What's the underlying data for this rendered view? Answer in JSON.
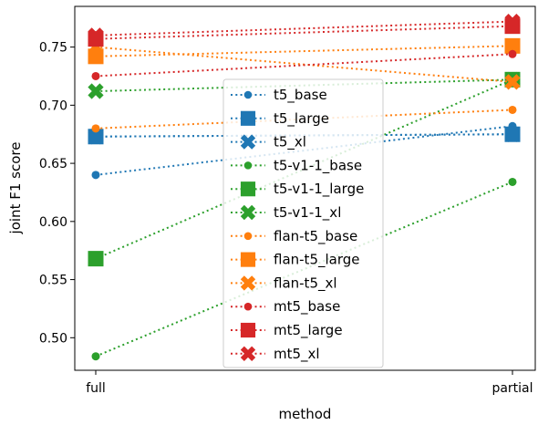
{
  "chart_data": {
    "type": "line",
    "title": "",
    "xlabel": "method",
    "ylabel": "joint F1 score",
    "categories": [
      "full",
      "partial"
    ],
    "ylim": [
      0.472,
      0.785
    ],
    "yticks": [
      "0.50",
      "0.55",
      "0.60",
      "0.65",
      "0.70",
      "0.75"
    ],
    "grid": false,
    "legend_position": "center",
    "colors": {
      "blue": "#1f77b4",
      "orange": "#ff7f0e",
      "green": "#2ca02c",
      "red": "#d62728"
    },
    "series": [
      {
        "name": "t5_base",
        "color": "#1f77b4",
        "marker": "circle",
        "values": [
          0.64,
          0.682
        ]
      },
      {
        "name": "t5_large",
        "color": "#1f77b4",
        "marker": "square",
        "values": [
          0.673,
          0.675
        ]
      },
      {
        "name": "t5_xl",
        "color": "#1f77b4",
        "marker": "x",
        "values": [
          0.673,
          0.675
        ]
      },
      {
        "name": "t5-v1-1_base",
        "color": "#2ca02c",
        "marker": "circle",
        "values": [
          0.484,
          0.634
        ]
      },
      {
        "name": "t5-v1-1_large",
        "color": "#2ca02c",
        "marker": "square",
        "values": [
          0.568,
          0.722
        ]
      },
      {
        "name": "t5-v1-1_xl",
        "color": "#2ca02c",
        "marker": "x",
        "values": [
          0.712,
          0.722
        ]
      },
      {
        "name": "flan-t5_base",
        "color": "#ff7f0e",
        "marker": "circle",
        "values": [
          0.68,
          0.696
        ]
      },
      {
        "name": "flan-t5_large",
        "color": "#ff7f0e",
        "marker": "square",
        "values": [
          0.742,
          0.751
        ]
      },
      {
        "name": "flan-t5_xl",
        "color": "#ff7f0e",
        "marker": "x",
        "values": [
          0.75,
          0.72
        ]
      },
      {
        "name": "mt5_base",
        "color": "#d62728",
        "marker": "circle",
        "values": [
          0.725,
          0.744
        ]
      },
      {
        "name": "mt5_large",
        "color": "#d62728",
        "marker": "square",
        "values": [
          0.757,
          0.768
        ]
      },
      {
        "name": "mt5_xl",
        "color": "#d62728",
        "marker": "x",
        "values": [
          0.76,
          0.772
        ]
      }
    ]
  }
}
